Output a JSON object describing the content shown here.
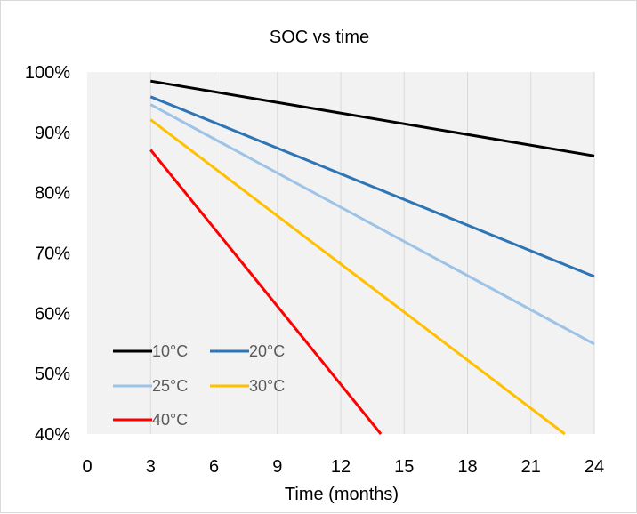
{
  "chart_data": {
    "type": "line",
    "title": "SOC vs time",
    "xlabel": "Time (months)",
    "ylabel": "",
    "xlim": [
      0,
      24
    ],
    "ylim": [
      0.4,
      1.0
    ],
    "x_ticks": [
      0,
      3,
      6,
      9,
      12,
      15,
      18,
      21,
      24
    ],
    "x_tick_labels": [
      "0",
      "3",
      "6",
      "9",
      "12",
      "15",
      "18",
      "21",
      "24"
    ],
    "y_ticks": [
      0.4,
      0.5,
      0.6,
      0.7,
      0.8,
      0.9,
      1.0
    ],
    "y_tick_labels": [
      "40%",
      "50%",
      "60%",
      "70%",
      "80%",
      "90%",
      "100%"
    ],
    "grid": "vertical",
    "legend_position": "bottom-left (inside plot)",
    "plot_background": "#f2f2f2",
    "series": [
      {
        "name": "10°C",
        "color": "#000000",
        "x": [
          3,
          24
        ],
        "y": [
          0.985,
          0.861
        ]
      },
      {
        "name": "20°C",
        "color": "#2e75b6",
        "x": [
          3,
          24
        ],
        "y": [
          0.959,
          0.661
        ]
      },
      {
        "name": "25°C",
        "color": "#9dc3e6",
        "x": [
          3,
          24
        ],
        "y": [
          0.946,
          0.549
        ]
      },
      {
        "name": "30°C",
        "color": "#ffc000",
        "x": [
          3,
          22.6
        ],
        "y": [
          0.921,
          0.4
        ]
      },
      {
        "name": "40°C",
        "color": "#ff0000",
        "x": [
          3,
          13.9
        ],
        "y": [
          0.871,
          0.4
        ]
      }
    ]
  }
}
